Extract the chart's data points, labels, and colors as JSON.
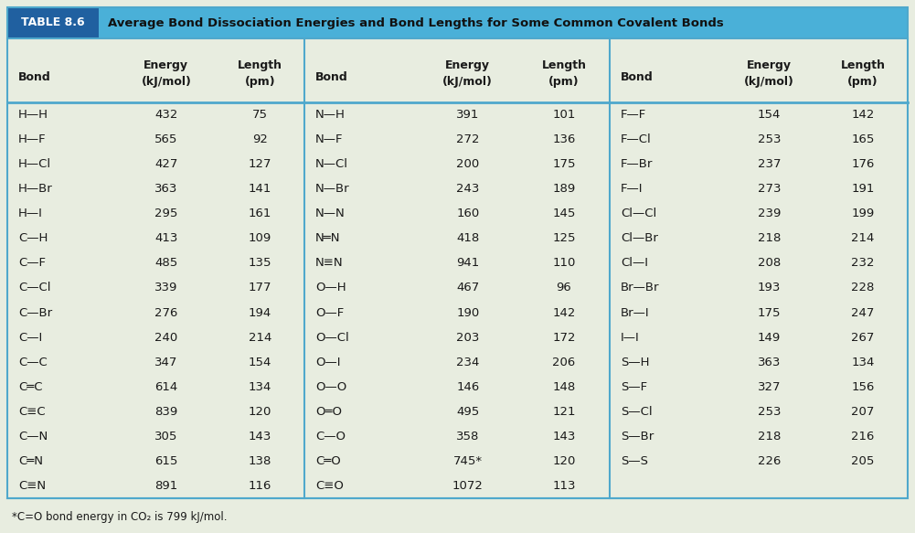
{
  "title_label": "TABLE 8.6",
  "title_text": "Average Bond Dissociation Energies and Bond Lengths for Some Common Covalent Bonds",
  "header_bg": "#4ab0d8",
  "table_bg": "#e8ede0",
  "title_label_bg": "#2060a0",
  "border_color": "#4fa8cc",
  "col1": [
    [
      "H—H",
      "432",
      "75"
    ],
    [
      "H—F",
      "565",
      "92"
    ],
    [
      "H—Cl",
      "427",
      "127"
    ],
    [
      "H—Br",
      "363",
      "141"
    ],
    [
      "H—I",
      "295",
      "161"
    ],
    [
      "C—H",
      "413",
      "109"
    ],
    [
      "C—F",
      "485",
      "135"
    ],
    [
      "C—Cl",
      "339",
      "177"
    ],
    [
      "C—Br",
      "276",
      "194"
    ],
    [
      "C—I",
      "240",
      "214"
    ],
    [
      "C—C",
      "347",
      "154"
    ],
    [
      "C═C",
      "614",
      "134"
    ],
    [
      "C≡C",
      "839",
      "120"
    ],
    [
      "C—N",
      "305",
      "143"
    ],
    [
      "C═N",
      "615",
      "138"
    ],
    [
      "C≡N",
      "891",
      "116"
    ]
  ],
  "col2": [
    [
      "N—H",
      "391",
      "101"
    ],
    [
      "N—F",
      "272",
      "136"
    ],
    [
      "N—Cl",
      "200",
      "175"
    ],
    [
      "N—Br",
      "243",
      "189"
    ],
    [
      "N—N",
      "160",
      "145"
    ],
    [
      "N═N",
      "418",
      "125"
    ],
    [
      "N≡N",
      "941",
      "110"
    ],
    [
      "O—H",
      "467",
      "96"
    ],
    [
      "O—F",
      "190",
      "142"
    ],
    [
      "O—Cl",
      "203",
      "172"
    ],
    [
      "O—I",
      "234",
      "206"
    ],
    [
      "O—O",
      "146",
      "148"
    ],
    [
      "O═O",
      "495",
      "121"
    ],
    [
      "C—O",
      "358",
      "143"
    ],
    [
      "C═O",
      "745*",
      "120"
    ],
    [
      "C≡O",
      "1072",
      "113"
    ]
  ],
  "col3": [
    [
      "F—F",
      "154",
      "142"
    ],
    [
      "F—Cl",
      "253",
      "165"
    ],
    [
      "F—Br",
      "237",
      "176"
    ],
    [
      "F—I",
      "273",
      "191"
    ],
    [
      "Cl—Cl",
      "239",
      "199"
    ],
    [
      "Cl—Br",
      "218",
      "214"
    ],
    [
      "Cl—I",
      "208",
      "232"
    ],
    [
      "Br—Br",
      "193",
      "228"
    ],
    [
      "Br—I",
      "175",
      "247"
    ],
    [
      "I—I",
      "149",
      "267"
    ],
    [
      "S—H",
      "363",
      "134"
    ],
    [
      "S—F",
      "327",
      "156"
    ],
    [
      "S—Cl",
      "253",
      "207"
    ],
    [
      "S—Br",
      "218",
      "216"
    ],
    [
      "S—S",
      "226",
      "205"
    ],
    [
      "",
      "",
      ""
    ]
  ],
  "footnote": "*C=O bond energy in CO₂ is 799 kJ/mol.",
  "text_color": "#1a1a1a",
  "divider_color": "#4fa8cc"
}
